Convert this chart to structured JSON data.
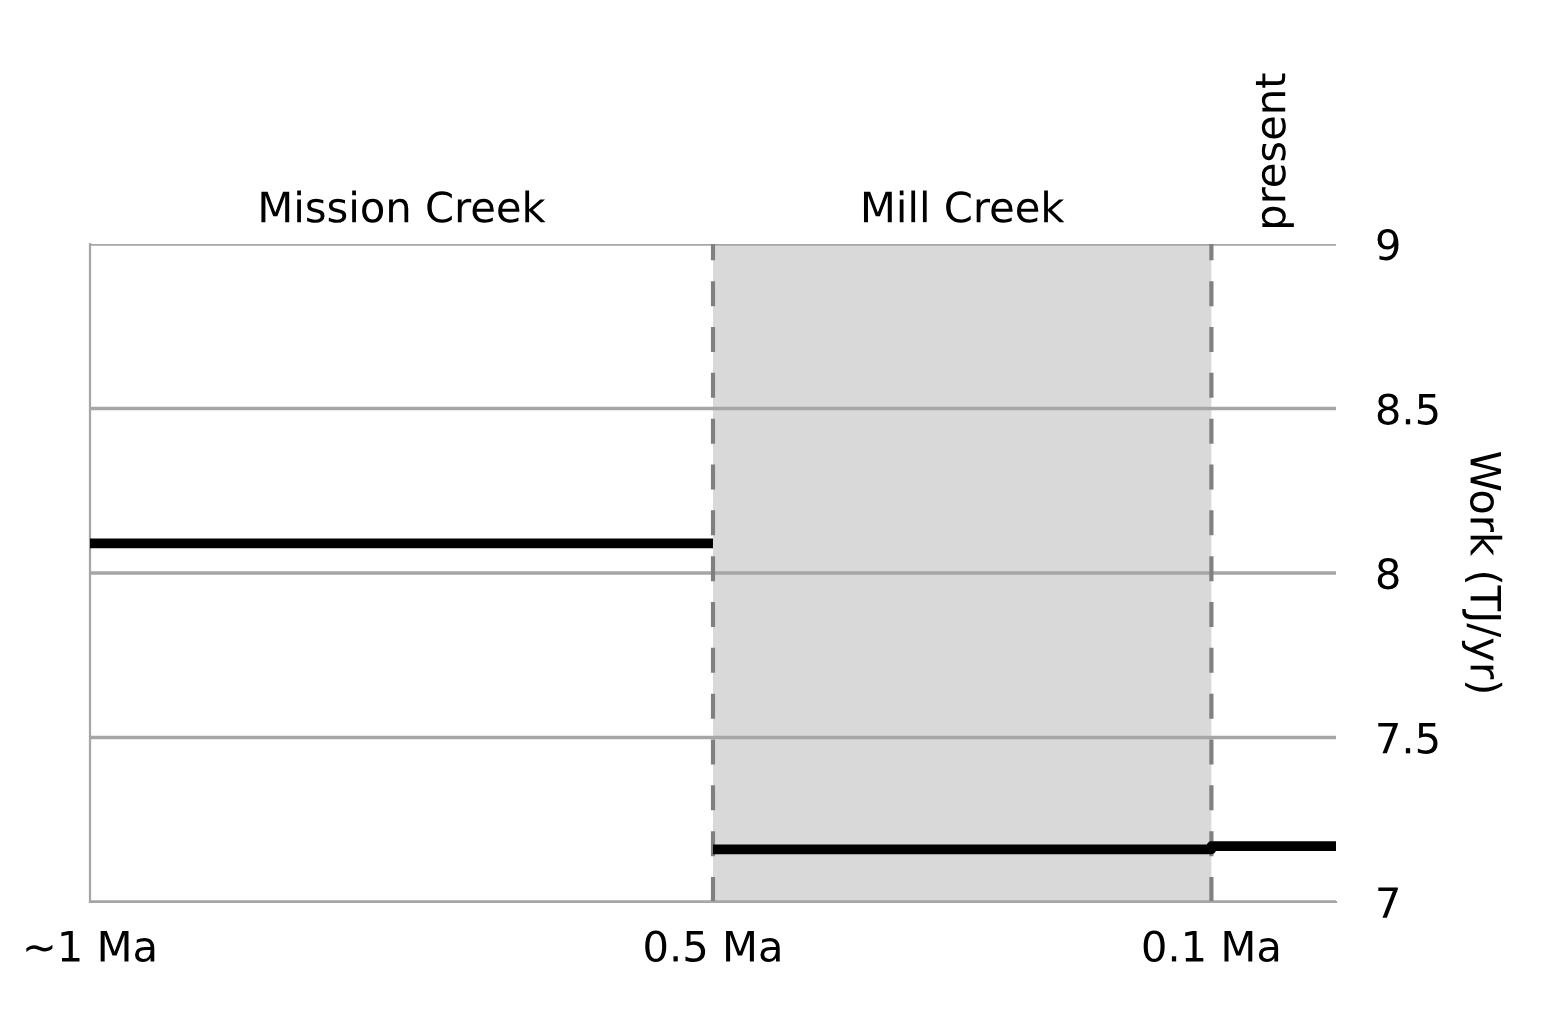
{
  "chart_data": {
    "type": "line",
    "ylabel": "Work (TJ/yr)",
    "xlim": [
      1.0,
      0.0
    ],
    "xticks": [
      {
        "value": 1.0,
        "label": "~1 Ma"
      },
      {
        "value": 0.5,
        "label": "0.5 Ma"
      },
      {
        "value": 0.1,
        "label": "0.1 Ma"
      }
    ],
    "ylim": [
      7,
      9
    ],
    "yticks": [
      7,
      7.5,
      8,
      8.5,
      9
    ],
    "grid": "y",
    "series": [
      {
        "color": "#000000",
        "x": [
          1.0,
          0.5
        ],
        "values": [
          8.09,
          8.09
        ]
      },
      {
        "color": "#000000",
        "x": [
          0.5,
          0.1,
          0.1,
          0.0
        ],
        "values": [
          7.16,
          7.16,
          7.17,
          7.17
        ]
      }
    ],
    "bands": [
      {
        "axis": "x",
        "from": 0.5,
        "to": 0.1,
        "label": "Mill Creek",
        "color": "#d9d9d9"
      }
    ],
    "ref_lines": [
      {
        "axis": "x",
        "value": 0.5,
        "color": "#808080",
        "line_style": "dashed"
      },
      {
        "axis": "x",
        "value": 0.1,
        "color": "#808080",
        "line_style": "dashed"
      }
    ],
    "annotations": [
      "Mission Creek",
      "present"
    ]
  }
}
